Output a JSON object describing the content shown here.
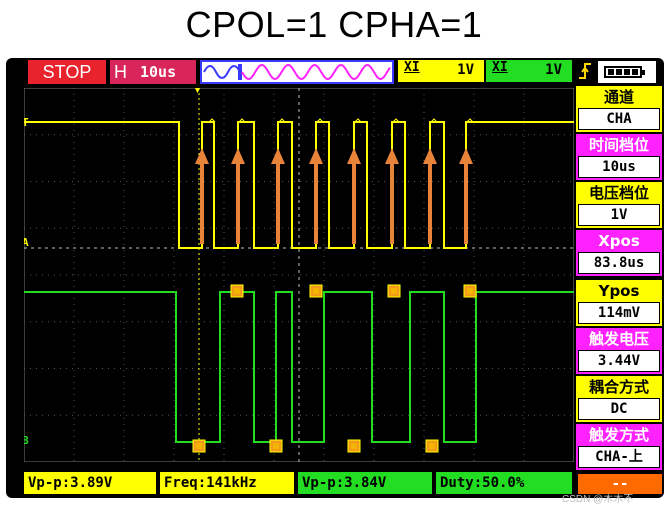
{
  "title": "CPOL=1 CPHA=1",
  "top_bar": {
    "run_state": "STOP",
    "timebase_label": "H",
    "timebase_value": "10us",
    "ch1": {
      "coupling_mark": "XI",
      "scale": "1V",
      "color": "#ffff00"
    },
    "ch2": {
      "coupling_mark": "XI",
      "scale": "1V",
      "color": "#22dd22"
    },
    "trigger_icon": "rising-edge-icon",
    "battery_icon": "battery-icon"
  },
  "markers": {
    "trigger_left": "T",
    "ch1_left": "A",
    "ch2_left": "B",
    "trigger_top": "▼"
  },
  "menu": [
    {
      "label": "通道",
      "value": "CHA"
    },
    {
      "label": "时间档位",
      "value": "10us"
    },
    {
      "label": "电压档位",
      "value": "1V"
    },
    {
      "label": "Xpos",
      "value": "83.8us"
    },
    {
      "label": "Ypos",
      "value": "114mV"
    },
    {
      "label": "触发电压",
      "value": "3.44V"
    },
    {
      "label": "耦合方式",
      "value": "DC"
    },
    {
      "label": "触发方式",
      "value": "CHA-上"
    }
  ],
  "measurements": [
    {
      "text": "Vp-p:3.89V"
    },
    {
      "text": "Freq:141kHz"
    },
    {
      "text": "Vp-p:3.84V"
    },
    {
      "text": "Duty:50.0%"
    }
  ],
  "bottom_right": "--",
  "watermark": "CSDN @木木不",
  "colors": {
    "ch1": "#ffff00",
    "ch2": "#22dd22",
    "arrow": "#e8843a",
    "marker": "#f29a1a"
  }
}
